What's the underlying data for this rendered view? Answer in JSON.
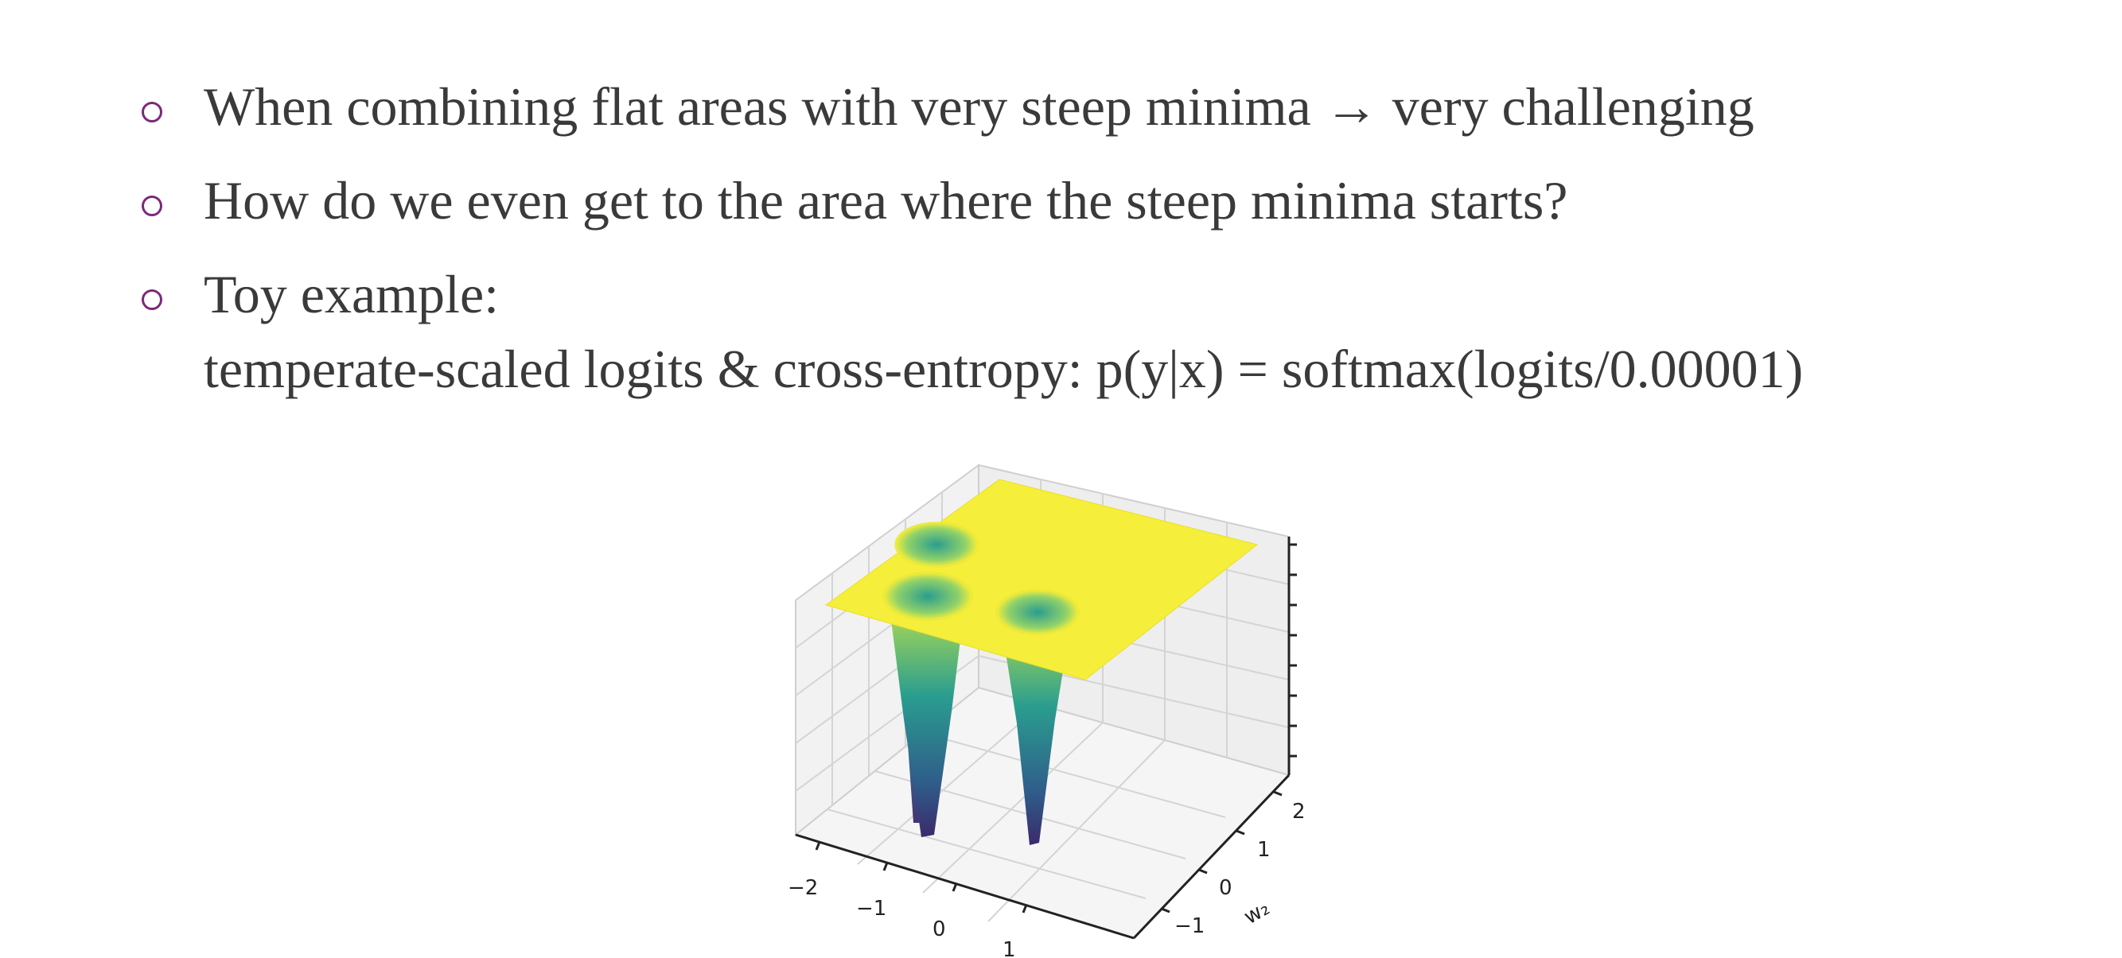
{
  "bullets": [
    {
      "text": "When combining flat areas with very steep minima → very challenging"
    },
    {
      "text": "How do we even get to the area where the steep minima starts?"
    },
    {
      "text": "Toy example:",
      "text2": "temperate-scaled logits & cross-entropy: p(y|x) = softmax(logits/0.00001)"
    }
  ],
  "plot": {
    "x_ticks": [
      "−2",
      "−1",
      "0",
      "1"
    ],
    "y_ticks": [
      "−1",
      "0",
      "1",
      "2"
    ],
    "y_label": "w₂",
    "colors": {
      "flat": "#f5ee3a",
      "mid": "#2a9d8f",
      "deep": "#3b2a6b",
      "grid": "#cfcfcf"
    }
  }
}
